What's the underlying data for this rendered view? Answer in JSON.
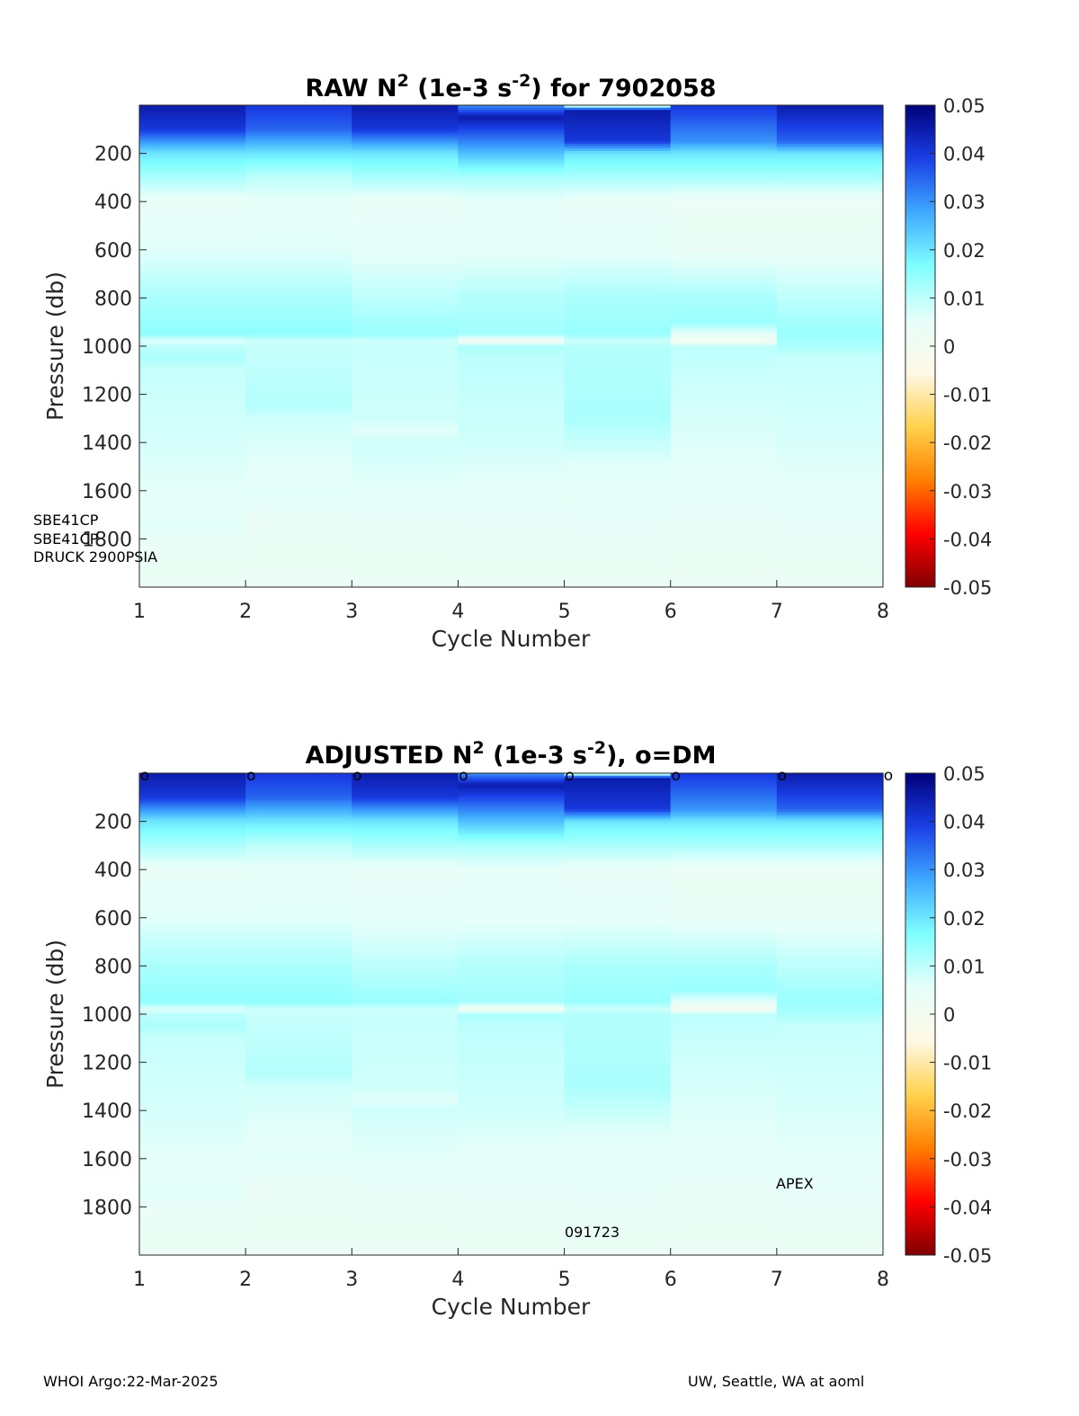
{
  "colorscale": [
    "#800000",
    "#ff0000",
    "#ff8000",
    "#ffd24d",
    "#fff8e6",
    "#e6fffa",
    "#80ffff",
    "#3fa9ff",
    "#1a3fe6",
    "#00007a"
  ],
  "chart_data": [
    {
      "type": "heatmap",
      "panel": "raw",
      "title_main": "RAW N",
      "title_sup": "2",
      "title_mid": " (1e-3 s",
      "title_sup2": "-2",
      "title_end": ") for 7902058",
      "xlabel": "Cycle Number",
      "ylabel": "Pressure (db)",
      "xlim": [
        1,
        8
      ],
      "ylim": [
        2000,
        0
      ],
      "x_ticks": [
        "1",
        "2",
        "3",
        "4",
        "5",
        "6",
        "7",
        "8"
      ],
      "y_ticks": [
        "200",
        "400",
        "600",
        "800",
        "1000",
        "1200",
        "1400",
        "1600",
        "1800"
      ],
      "clim": [
        -0.05,
        0.05
      ],
      "colorbar_ticks": [
        "0.05",
        "0.04",
        "0.03",
        "0.02",
        "0.01",
        "0",
        "-0.01",
        "-0.02",
        "-0.03",
        "-0.04",
        "-0.05"
      ],
      "dm_markers": false,
      "profiles": [
        [
          [
            0,
            0.045
          ],
          [
            100,
            0.04
          ],
          [
            200,
            0.02
          ],
          [
            300,
            0.012
          ],
          [
            400,
            0.004
          ],
          [
            600,
            0.006
          ],
          [
            800,
            0.012
          ],
          [
            950,
            0.015
          ],
          [
            980,
            0.006
          ],
          [
            1000,
            0.01
          ],
          [
            1050,
            0.012
          ],
          [
            1100,
            0.009
          ],
          [
            1450,
            0.007
          ],
          [
            1650,
            0.005
          ],
          [
            1750,
            0.006
          ],
          [
            1800,
            0.004
          ],
          [
            2000,
            0.003
          ]
        ],
        [
          [
            0,
            0.04
          ],
          [
            100,
            0.035
          ],
          [
            200,
            0.02
          ],
          [
            300,
            0.01
          ],
          [
            400,
            0.005
          ],
          [
            600,
            0.006
          ],
          [
            800,
            0.012
          ],
          [
            950,
            0.015
          ],
          [
            980,
            0.008
          ],
          [
            1000,
            0.009
          ],
          [
            1250,
            0.011
          ],
          [
            1300,
            0.008
          ],
          [
            1550,
            0.005
          ],
          [
            1600,
            0.006
          ],
          [
            1700,
            0.004
          ],
          [
            2000,
            0.003
          ]
        ],
        [
          [
            0,
            0.045
          ],
          [
            100,
            0.04
          ],
          [
            200,
            0.02
          ],
          [
            300,
            0.012
          ],
          [
            400,
            0.004
          ],
          [
            600,
            0.005
          ],
          [
            800,
            0.01
          ],
          [
            950,
            0.014
          ],
          [
            980,
            0.008
          ],
          [
            1000,
            0.009
          ],
          [
            1300,
            0.008
          ],
          [
            1350,
            0.006
          ],
          [
            1400,
            0.008
          ],
          [
            1750,
            0.004
          ],
          [
            2000,
            0.003
          ]
        ],
        [
          [
            0,
            0.03
          ],
          [
            50,
            0.045
          ],
          [
            200,
            0.025
          ],
          [
            300,
            0.012
          ],
          [
            400,
            0.005
          ],
          [
            600,
            0.005
          ],
          [
            800,
            0.011
          ],
          [
            950,
            0.013
          ],
          [
            980,
            0.0
          ],
          [
            1000,
            0.012
          ],
          [
            1050,
            0.01
          ],
          [
            1400,
            0.008
          ],
          [
            1600,
            0.005
          ],
          [
            2000,
            0.003
          ]
        ],
        [
          [
            0,
            0.0
          ],
          [
            20,
            0.045
          ],
          [
            150,
            0.04
          ],
          [
            200,
            0.02
          ],
          [
            300,
            0.012
          ],
          [
            400,
            0.004
          ],
          [
            600,
            0.005
          ],
          [
            800,
            0.012
          ],
          [
            950,
            0.014
          ],
          [
            980,
            0.008
          ],
          [
            1000,
            0.011
          ],
          [
            1300,
            0.012
          ],
          [
            1400,
            0.009
          ],
          [
            1500,
            0.006
          ],
          [
            1650,
            0.005
          ],
          [
            2000,
            0.003
          ]
        ],
        [
          [
            0,
            0.04
          ],
          [
            150,
            0.03
          ],
          [
            200,
            0.02
          ],
          [
            300,
            0.012
          ],
          [
            400,
            0.003
          ],
          [
            600,
            0.004
          ],
          [
            800,
            0.012
          ],
          [
            900,
            0.014
          ],
          [
            980,
            0.0
          ],
          [
            1000,
            0.01
          ],
          [
            1200,
            0.008
          ],
          [
            1450,
            0.006
          ],
          [
            1750,
            0.004
          ],
          [
            2000,
            0.003
          ]
        ],
        [
          [
            0,
            0.045
          ],
          [
            150,
            0.035
          ],
          [
            200,
            0.02
          ],
          [
            300,
            0.012
          ],
          [
            400,
            0.003
          ],
          [
            600,
            0.004
          ],
          [
            800,
            0.01
          ],
          [
            950,
            0.014
          ],
          [
            1000,
            0.012
          ],
          [
            1050,
            0.009
          ],
          [
            1400,
            0.007
          ],
          [
            1650,
            0.005
          ],
          [
            2000,
            0.003
          ]
        ]
      ],
      "notes": [
        "SBE41CP",
        "SBE41CP",
        "DRUCK 2900PSIA"
      ]
    },
    {
      "type": "heatmap",
      "panel": "adjusted",
      "title_main": "ADJUSTED N",
      "title_sup": "2",
      "title_mid": " (1e-3 s",
      "title_sup2": "-2",
      "title_end": "), o=DM",
      "xlabel": "Cycle Number",
      "ylabel": "Pressure (db)",
      "xlim": [
        1,
        8
      ],
      "ylim": [
        2000,
        0
      ],
      "x_ticks": [
        "1",
        "2",
        "3",
        "4",
        "5",
        "6",
        "7",
        "8"
      ],
      "y_ticks": [
        "200",
        "400",
        "600",
        "800",
        "1000",
        "1200",
        "1400",
        "1600",
        "1800"
      ],
      "clim": [
        -0.05,
        0.05
      ],
      "colorbar_ticks": [
        "0.05",
        "0.04",
        "0.03",
        "0.02",
        "0.01",
        "0",
        "-0.01",
        "-0.02",
        "-0.03",
        "-0.04",
        "-0.05"
      ],
      "dm_markers": true,
      "dm_marker_label": "o",
      "dm_cycles": [
        1,
        2,
        3,
        4,
        5,
        6,
        7,
        8
      ],
      "profiles": [
        [
          [
            0,
            0.045
          ],
          [
            100,
            0.04
          ],
          [
            200,
            0.02
          ],
          [
            300,
            0.012
          ],
          [
            400,
            0.004
          ],
          [
            600,
            0.006
          ],
          [
            800,
            0.012
          ],
          [
            950,
            0.015
          ],
          [
            980,
            0.006
          ],
          [
            1000,
            0.01
          ],
          [
            1050,
            0.012
          ],
          [
            1100,
            0.009
          ],
          [
            1450,
            0.007
          ],
          [
            1650,
            0.005
          ],
          [
            1750,
            0.006
          ],
          [
            1800,
            0.004
          ],
          [
            2000,
            0.003
          ]
        ],
        [
          [
            0,
            0.04
          ],
          [
            100,
            0.035
          ],
          [
            200,
            0.02
          ],
          [
            300,
            0.01
          ],
          [
            400,
            0.005
          ],
          [
            600,
            0.006
          ],
          [
            800,
            0.012
          ],
          [
            950,
            0.015
          ],
          [
            980,
            0.008
          ],
          [
            1000,
            0.009
          ],
          [
            1250,
            0.011
          ],
          [
            1300,
            0.008
          ],
          [
            1550,
            0.005
          ],
          [
            1600,
            0.006
          ],
          [
            1700,
            0.004
          ],
          [
            2000,
            0.003
          ]
        ],
        [
          [
            0,
            0.045
          ],
          [
            100,
            0.04
          ],
          [
            200,
            0.02
          ],
          [
            300,
            0.012
          ],
          [
            400,
            0.004
          ],
          [
            600,
            0.005
          ],
          [
            800,
            0.01
          ],
          [
            950,
            0.014
          ],
          [
            980,
            0.008
          ],
          [
            1000,
            0.009
          ],
          [
            1300,
            0.008
          ],
          [
            1350,
            0.006
          ],
          [
            1400,
            0.008
          ],
          [
            1750,
            0.004
          ],
          [
            2000,
            0.003
          ]
        ],
        [
          [
            0,
            0.03
          ],
          [
            50,
            0.045
          ],
          [
            200,
            0.025
          ],
          [
            300,
            0.012
          ],
          [
            400,
            0.005
          ],
          [
            600,
            0.005
          ],
          [
            800,
            0.011
          ],
          [
            950,
            0.013
          ],
          [
            980,
            0.0
          ],
          [
            1000,
            0.012
          ],
          [
            1050,
            0.01
          ],
          [
            1400,
            0.008
          ],
          [
            1600,
            0.005
          ],
          [
            2000,
            0.003
          ]
        ],
        [
          [
            0,
            0.0
          ],
          [
            20,
            0.045
          ],
          [
            150,
            0.04
          ],
          [
            200,
            0.02
          ],
          [
            300,
            0.012
          ],
          [
            400,
            0.004
          ],
          [
            600,
            0.005
          ],
          [
            800,
            0.012
          ],
          [
            950,
            0.014
          ],
          [
            980,
            0.008
          ],
          [
            1000,
            0.011
          ],
          [
            1300,
            0.012
          ],
          [
            1400,
            0.009
          ],
          [
            1500,
            0.006
          ],
          [
            1650,
            0.005
          ],
          [
            2000,
            0.003
          ]
        ],
        [
          [
            0,
            0.04
          ],
          [
            150,
            0.03
          ],
          [
            200,
            0.02
          ],
          [
            300,
            0.012
          ],
          [
            400,
            0.003
          ],
          [
            600,
            0.004
          ],
          [
            800,
            0.012
          ],
          [
            900,
            0.014
          ],
          [
            980,
            0.0
          ],
          [
            1000,
            0.01
          ],
          [
            1200,
            0.008
          ],
          [
            1450,
            0.006
          ],
          [
            1750,
            0.004
          ],
          [
            2000,
            0.003
          ]
        ],
        [
          [
            0,
            0.045
          ],
          [
            150,
            0.035
          ],
          [
            200,
            0.02
          ],
          [
            300,
            0.012
          ],
          [
            400,
            0.003
          ],
          [
            600,
            0.004
          ],
          [
            800,
            0.01
          ],
          [
            950,
            0.014
          ],
          [
            1000,
            0.012
          ],
          [
            1050,
            0.009
          ],
          [
            1400,
            0.007
          ],
          [
            1650,
            0.005
          ],
          [
            2000,
            0.003
          ]
        ]
      ],
      "notes": [
        "APEX",
        "091723"
      ]
    }
  ],
  "footer": {
    "left": "WHOI Argo:22-Mar-2025",
    "right": "UW, Seattle, WA at aoml"
  }
}
